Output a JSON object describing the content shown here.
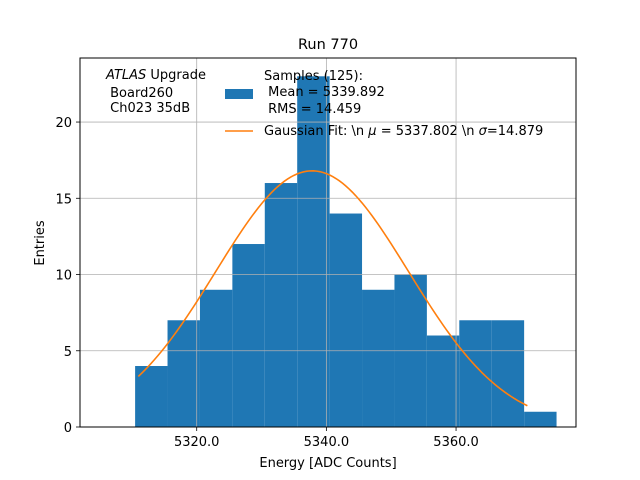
{
  "chart_data": {
    "type": "bar",
    "title": "Run 770",
    "xlabel": "Energy [ADC Counts]",
    "ylabel": "Entries",
    "xlim": [
      5302,
      5378.5
    ],
    "ylim": [
      0,
      24.2
    ],
    "grid": true,
    "x_ticks": [
      5320,
      5340,
      5360
    ],
    "x_tick_labels": [
      "5320.0",
      "5340.0",
      "5360.0"
    ],
    "y_ticks": [
      0,
      5,
      10,
      15,
      20
    ],
    "y_tick_labels": [
      "0",
      "5",
      "10",
      "15",
      "20"
    ],
    "histogram": {
      "name": "Samples (125):",
      "color": "#1f77b4",
      "bin_edges": [
        5310.5,
        5315.5,
        5320.5,
        5325.5,
        5330.5,
        5335.5,
        5340.5,
        5345.5,
        5350.5,
        5355.5,
        5360.5,
        5365.5,
        5370.5,
        5375.5
      ],
      "counts": [
        4,
        7,
        9,
        12,
        16,
        23,
        14,
        9,
        10,
        6,
        7,
        7,
        1
      ]
    },
    "fit": {
      "name": "Gaussian Fit: \\n $\\mu$ = 5337.802 \\n $\\sigma$=14.879",
      "color": "#ff7f0e",
      "mu": 5337.802,
      "sigma": 14.879,
      "amplitude": 16.8,
      "x_range": [
        5311,
        5371
      ]
    },
    "legend": {
      "placement": "top",
      "hist_lines": [
        "Samples (125):",
        " Mean = 5339.892",
        " RMS = 14.459"
      ],
      "fit_label_prefix": "Gaussian Fit: \\n ",
      "fit_mu_symbol": "μ",
      "fit_mid": " = 5337.802 \\n ",
      "fit_sigma_symbol": "σ",
      "fit_suffix": "=14.879"
    },
    "annotation": {
      "line1_italic": "ATLAS",
      "line1_rest": " Upgrade",
      "line2": " Board260",
      "line3": " Ch023 35dB"
    }
  }
}
